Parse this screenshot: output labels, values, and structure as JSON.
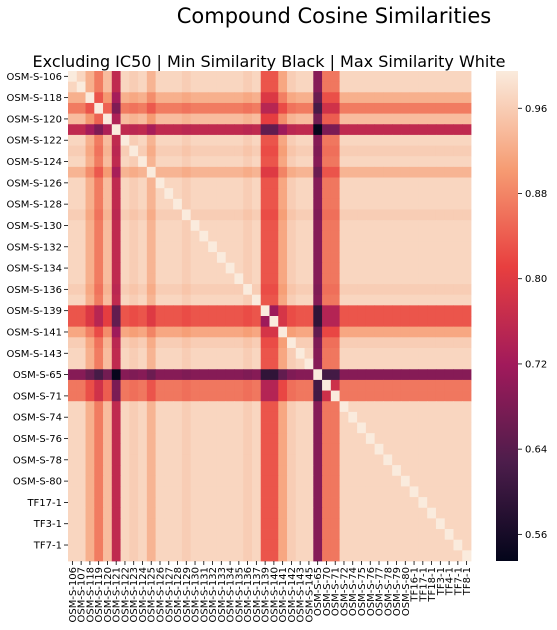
{
  "suptitle": "Compound Cosine Similarities",
  "chart_data": {
    "type": "heatmap",
    "title": "Excluding IC50 | Min Similarity Black | Max Similarity White",
    "colormap": "rocket",
    "row_labels": [
      "OSM-S-106",
      "OSM-S-107",
      "OSM-S-118",
      "OSM-S-119",
      "OSM-S-120",
      "OSM-S-121",
      "OSM-S-122",
      "OSM-S-123",
      "OSM-S-124",
      "OSM-S-125",
      "OSM-S-126",
      "OSM-S-127",
      "OSM-S-128",
      "OSM-S-129",
      "OSM-S-130",
      "OSM-S-131",
      "OSM-S-132",
      "OSM-S-133",
      "OSM-S-134",
      "OSM-S-135",
      "OSM-S-136",
      "OSM-S-137",
      "OSM-S-139",
      "OSM-S-140",
      "OSM-S-141",
      "OSM-S-142",
      "OSM-S-143",
      "OSM-S-145",
      "OSM-S-65",
      "OSM-S-70",
      "OSM-S-71",
      "OSM-S-72",
      "OSM-S-74",
      "OSM-S-75",
      "OSM-S-76",
      "OSM-S-77",
      "OSM-S-78",
      "OSM-S-79",
      "OSM-S-80",
      "TF16-1",
      "TF17-1",
      "TF18-1",
      "TF3-1",
      "TF4-1",
      "TF7-1",
      "TF8-1"
    ],
    "col_labels": [
      "OSM-S-106",
      "OSM-S-107",
      "OSM-S-118",
      "OSM-S-119",
      "OSM-S-120",
      "OSM-S-121",
      "OSM-S-122",
      "OSM-S-123",
      "OSM-S-124",
      "OSM-S-125",
      "OSM-S-126",
      "OSM-S-127",
      "OSM-S-128",
      "OSM-S-129",
      "OSM-S-130",
      "OSM-S-131",
      "OSM-S-132",
      "OSM-S-133",
      "OSM-S-134",
      "OSM-S-135",
      "OSM-S-136",
      "OSM-S-137",
      "OSM-S-139",
      "OSM-S-140",
      "OSM-S-141",
      "OSM-S-142",
      "OSM-S-143",
      "OSM-S-145",
      "OSM-S-65",
      "OSM-S-70",
      "OSM-S-71",
      "OSM-S-72",
      "OSM-S-74",
      "OSM-S-75",
      "OSM-S-76",
      "OSM-S-77",
      "OSM-S-78",
      "OSM-S-79",
      "OSM-S-80",
      "TF16-1",
      "TF17-1",
      "TF18-1",
      "TF3-1",
      "TF4-1",
      "TF7-1",
      "TF8-1"
    ],
    "colorbar_ticks": [
      "0.96",
      "0.88",
      "0.80",
      "0.72",
      "0.64",
      "0.56"
    ],
    "colorbar_tick_values": [
      0.96,
      0.88,
      0.8,
      0.72,
      0.64,
      0.56
    ],
    "vmin": 0.535,
    "vmax": 0.995,
    "diagonal_value": 1.0,
    "compound_profile": [
      0.985,
      0.985,
      0.94,
      0.885,
      0.955,
      0.77,
      0.985,
      0.975,
      0.985,
      0.945,
      0.985,
      0.985,
      0.985,
      0.975,
      0.985,
      0.985,
      0.985,
      0.985,
      0.985,
      0.985,
      0.975,
      0.985,
      0.845,
      0.845,
      0.93,
      0.975,
      0.985,
      0.985,
      0.7,
      0.88,
      0.88,
      0.985,
      0.985,
      0.985,
      0.985,
      0.985,
      0.985,
      0.985,
      0.985,
      0.985,
      0.985,
      0.985,
      0.985,
      0.985,
      0.985,
      0.985
    ],
    "value_rule": "value(i,j) = 1.0 if i==j, otherwise compound_profile[i] * compound_profile[j]"
  }
}
